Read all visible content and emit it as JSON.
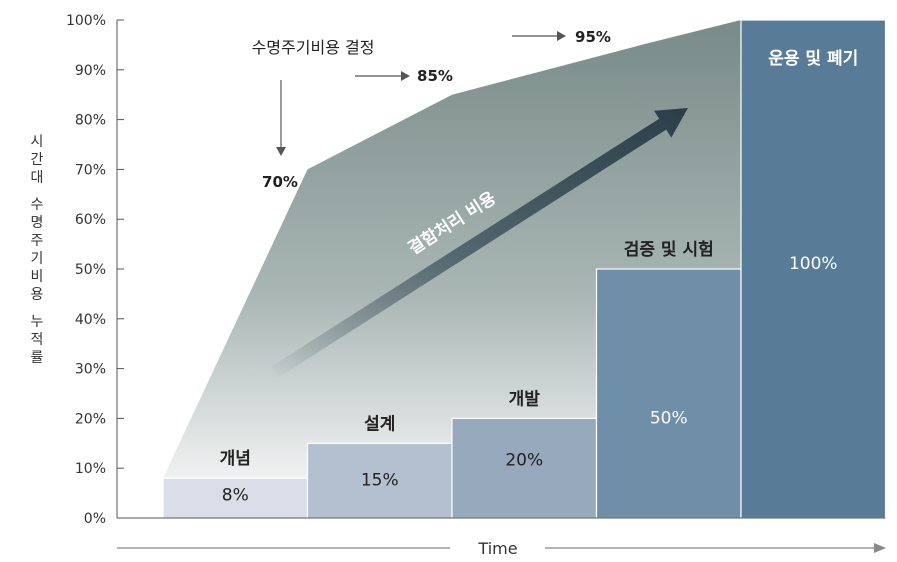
{
  "chart_data": {
    "type": "bar",
    "ylabel": "시간대 수명주기비용 누적률",
    "xlabel": "Time",
    "ylim": [
      0,
      100
    ],
    "y_ticks": [
      "0%",
      "10%",
      "20%",
      "30%",
      "40%",
      "50%",
      "60%",
      "70%",
      "80%",
      "90%",
      "100%"
    ],
    "grid": false,
    "bars": [
      {
        "stage": "개념",
        "value": 8,
        "value_label": "8%",
        "color": "#d9dee8"
      },
      {
        "stage": "설계",
        "value": 15,
        "value_label": "15%",
        "color": "#b3c0d0"
      },
      {
        "stage": "개발",
        "value": 20,
        "value_label": "20%",
        "color": "#97a9bd"
      },
      {
        "stage": "검증 및 시험",
        "value": 50,
        "value_label": "50%",
        "color": "#6f8fa9"
      },
      {
        "stage": "운용 및 폐기",
        "value": 100,
        "value_label": "100%",
        "color": "#587b98"
      }
    ],
    "cost_decision_curve": {
      "title": "수명주기비용 결정",
      "points": [
        {
          "stage_index": 0,
          "value": 8
        },
        {
          "stage_index": 1,
          "value": 70,
          "label": "70%"
        },
        {
          "stage_index": 2,
          "value": 85,
          "label": "85%"
        },
        {
          "stage_index": 3,
          "value": 95,
          "label": "95%"
        },
        {
          "stage_index": 4,
          "value": 100
        }
      ]
    },
    "trend_arrow_label": "결함처리 비용",
    "colors": {
      "area_top": "#7a8d8a",
      "arrow_dark": "#2b3d48",
      "axis": "#555555"
    }
  }
}
